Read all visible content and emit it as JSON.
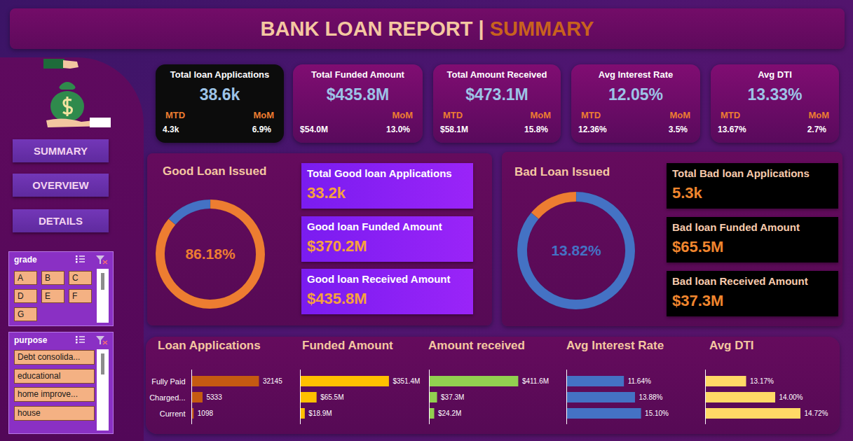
{
  "header": {
    "title": "BANK LOAN REPORT",
    "separator": "|",
    "subtitle": "SUMMARY"
  },
  "nav": [
    "SUMMARY",
    "OVERVIEW",
    "DETAILS"
  ],
  "slicers": [
    {
      "title": "grade",
      "items": [
        "A",
        "B",
        "C",
        "D",
        "E",
        "F",
        "G"
      ]
    },
    {
      "title": "purpose",
      "items": [
        "Debt consolida...",
        "educational",
        "home improve...",
        "house"
      ]
    }
  ],
  "kpis": [
    {
      "title": "Total loan Applications",
      "value": "38.6k",
      "mtd_label": "MTD",
      "mtd": "4.3k",
      "mom_label": "MoM",
      "mom": "6.9%"
    },
    {
      "title": "Total Funded Amount",
      "value": "$435.8M",
      "mtd": "$54.0M",
      "mom_label": "MoM",
      "mom": "13.0%"
    },
    {
      "title": "Total Amount Received",
      "value": "$473.1M",
      "mtd_label": "MTD",
      "mtd": "$58.1M",
      "mom_label": "MoM",
      "mom": "15.8%"
    },
    {
      "title": "Avg Interest Rate",
      "value": "12.05%",
      "mtd_label": "MTD",
      "mtd": "12.36%",
      "mom_label": "MoM",
      "mom": "3.5%"
    },
    {
      "title": "Avg DTI",
      "value": "13.33%",
      "mtd_label": "MTD",
      "mtd": "13.67%",
      "mom_label": "MoM",
      "mom": "2.7%"
    }
  ],
  "good_loan_cards": [
    {
      "title": "Total Good loan Applications",
      "value": "33.2k"
    },
    {
      "title": "Good loan Funded Amount",
      "value": "$370.2M"
    },
    {
      "title": "Good loan Received Amount",
      "value": "$435.8M"
    }
  ],
  "bad_loan_cards": [
    {
      "title": "Total Bad loan Applications",
      "value": "5.3k"
    },
    {
      "title": "Bad loan Funded Amount",
      "value": "$65.5M"
    },
    {
      "title": "Bad loan Received Amount",
      "value": "$37.3M"
    }
  ],
  "chart_data": [
    {
      "type": "pie",
      "title": "Good Loan Issued",
      "values": [
        86.18,
        13.82
      ],
      "value_labels": [
        "86.18%",
        null
      ],
      "colors": [
        "#ed7d31",
        "#4472c4"
      ],
      "data_labels": true
    },
    {
      "type": "pie",
      "title": "Bad Loan Issued",
      "values": [
        86.18,
        13.82
      ],
      "value_labels": [
        null,
        "13.82%"
      ],
      "colors": [
        "#4472c4",
        "#ed7d31"
      ],
      "data_labels": true
    },
    {
      "type": "bar",
      "title": "Loan Applications",
      "orientation": "horizontal",
      "categories": [
        "Fully Paid",
        "Charged...",
        "Current"
      ],
      "values": [
        32145,
        5333,
        1098
      ],
      "color": "#c55a11",
      "xlim": [
        0,
        40000
      ],
      "data_labels": true,
      "tick_labels": "y"
    },
    {
      "type": "bar",
      "title": "Funded Amount",
      "orientation": "horizontal",
      "categories": [
        null,
        null,
        null
      ],
      "values": [
        351.4,
        65.5,
        18.9
      ],
      "value_labels": [
        "$351.4M",
        "$65.5M",
        "$18.9M"
      ],
      "color": "#ffc000",
      "xlim": [
        0,
        360
      ],
      "data_labels": true,
      "tick_labels": false
    },
    {
      "type": "bar",
      "title": "Amount received",
      "orientation": "horizontal",
      "categories": [
        null,
        null,
        null
      ],
      "values": [
        411.6,
        37.3,
        24.2
      ],
      "value_labels": [
        "$411.6M",
        "$37.3M",
        "$24.2M"
      ],
      "color": "#92d050",
      "xlim": [
        0,
        420
      ],
      "data_labels": true,
      "tick_labels": false
    },
    {
      "type": "bar",
      "title": "Avg Interest Rate",
      "orientation": "horizontal",
      "categories": [
        null,
        null,
        null
      ],
      "values": [
        11.64,
        13.88,
        15.1
      ],
      "value_labels": [
        "11.64%",
        "13.88%",
        "15.10%"
      ],
      "color": "#4472c4",
      "xlim": [
        0,
        17
      ],
      "data_labels": true,
      "tick_labels": false
    },
    {
      "type": "bar",
      "title": "Avg DTI",
      "orientation": "horizontal",
      "categories": [
        null,
        null,
        null
      ],
      "values": [
        13.17,
        14,
        14.72
      ],
      "value_labels": [
        "13.17%",
        "14.00%",
        "14.72%"
      ],
      "color": "#ffd966",
      "xlim": [
        12,
        15
      ],
      "data_labels": true,
      "tick_labels": false
    }
  ]
}
